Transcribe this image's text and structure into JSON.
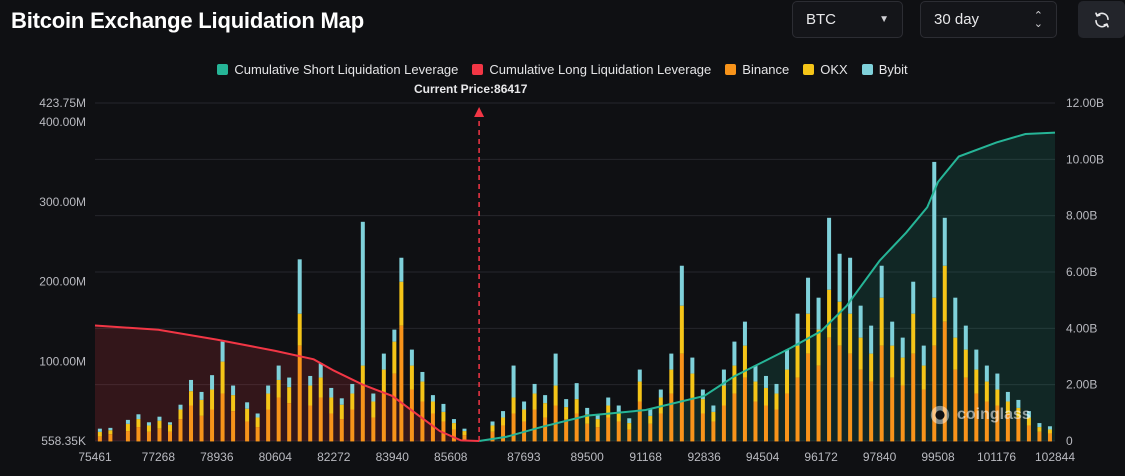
{
  "header": {
    "title": "Bitcoin Exchange Liquidation Map",
    "coin_select": "BTC",
    "range_select": "30 day"
  },
  "icons": {
    "coin_caret": "caret-down-icon",
    "range_updown": "up-down-arrows-icon",
    "refresh": "refresh-icon",
    "watermark": "coinglass-logo"
  },
  "current_price_label": "Current Price:86417",
  "watermark_text": "coinglass",
  "colors": {
    "short": "#26b597",
    "long": "#f23645",
    "binance": "#f7931a",
    "okx": "#f5c518",
    "bybit": "#7fd1da"
  },
  "chart_data": {
    "type": "bar",
    "legend": [
      {
        "name": "Cumulative Short Liquidation Leverage",
        "color": "#26b597"
      },
      {
        "name": "Cumulative Long Liquidation Leverage",
        "color": "#f23645"
      },
      {
        "name": "Binance",
        "color": "#f7931a"
      },
      {
        "name": "OKX",
        "color": "#f5c518"
      },
      {
        "name": "Bybit",
        "color": "#7fd1da"
      }
    ],
    "legend_position": "top-center",
    "current_price": 86417,
    "x_ticks": [
      "75461",
      "77268",
      "78936",
      "80604",
      "82272",
      "83940",
      "85608",
      "87693",
      "89500",
      "91168",
      "92836",
      "94504",
      "96172",
      "97840",
      "99508",
      "101176",
      "102844"
    ],
    "x_range": [
      75461,
      102844
    ],
    "y_left_ticks": [
      "423.75M",
      "400.00M",
      "300.00M",
      "200.00M",
      "100.00M",
      "558.35K"
    ],
    "y_left_range": [
      558350,
      423750000
    ],
    "y_right_ticks": [
      "12.00B",
      "10.00B",
      "8.00B",
      "6.00B",
      "4.00B",
      "2.00B",
      "0"
    ],
    "y_right_range": [
      0,
      12000000000
    ],
    "cumulative_long": [
      [
        75461,
        4100000000.0
      ],
      [
        77268,
        3950000000.0
      ],
      [
        78936,
        3600000000.0
      ],
      [
        80604,
        3200000000.0
      ],
      [
        81700,
        2900000000.0
      ],
      [
        82272,
        2500000000.0
      ],
      [
        83100,
        2000000000.0
      ],
      [
        83940,
        1600000000.0
      ],
      [
        84700,
        900000000.0
      ],
      [
        85300,
        350000000.0
      ],
      [
        85900,
        20000000.0
      ],
      [
        86417,
        0
      ]
    ],
    "cumulative_short": [
      [
        86417,
        0
      ],
      [
        87200,
        150000000.0
      ],
      [
        88200,
        500000000.0
      ],
      [
        89500,
        900000000.0
      ],
      [
        91168,
        1100000000.0
      ],
      [
        92836,
        1600000000.0
      ],
      [
        93700,
        2300000000.0
      ],
      [
        94504,
        2800000000.0
      ],
      [
        95300,
        3300000000.0
      ],
      [
        96172,
        3900000000.0
      ],
      [
        96900,
        4800000000.0
      ],
      [
        97840,
        6400000000.0
      ],
      [
        98600,
        7400000000.0
      ],
      [
        99200,
        8300000000.0
      ],
      [
        99508,
        9200000000.0
      ],
      [
        100100,
        10100000000.0
      ],
      [
        101176,
        10600000000.0
      ],
      [
        102000,
        10900000000.0
      ],
      [
        102844,
        10950000000.0
      ]
    ],
    "bars": [
      [
        75600,
        6000000.0,
        6000000.0,
        4000000.0
      ],
      [
        75900,
        9000000.0,
        5000000.0,
        3000000.0
      ],
      [
        76400,
        13000000.0,
        9000000.0,
        5000000.0
      ],
      [
        76700,
        18000000.0,
        10000000.0,
        6000000.0
      ],
      [
        77000,
        12000000.0,
        8000000.0,
        4000000.0
      ],
      [
        77300,
        16000000.0,
        10000000.0,
        5000000.0
      ],
      [
        77600,
        12000000.0,
        9000000.0,
        3000000.0
      ],
      [
        77900,
        28000000.0,
        12000000.0,
        6000000.0
      ],
      [
        78200,
        45000000.0,
        18000000.0,
        14000000.0
      ],
      [
        78500,
        32000000.0,
        20000000.0,
        10000000.0
      ],
      [
        78800,
        40000000.0,
        25000000.0,
        18000000.0
      ],
      [
        79100,
        60000000.0,
        40000000.0,
        25000000.0
      ],
      [
        79400,
        38000000.0,
        20000000.0,
        12000000.0
      ],
      [
        79800,
        25000000.0,
        16000000.0,
        8000000.0
      ],
      [
        80100,
        18000000.0,
        12000000.0,
        5000000.0
      ],
      [
        80400,
        40000000.0,
        20000000.0,
        10000000.0
      ],
      [
        80700,
        55000000.0,
        22000000.0,
        18000000.0
      ],
      [
        81000,
        48000000.0,
        20000000.0,
        12000000.0
      ],
      [
        81300,
        120000000.0,
        40000000.0,
        68000000.0
      ],
      [
        81600,
        45000000.0,
        25000000.0,
        12000000.0
      ],
      [
        81900,
        55000000.0,
        25000000.0,
        18000000.0
      ],
      [
        82200,
        35000000.0,
        20000000.0,
        12000000.0
      ],
      [
        82500,
        28000000.0,
        18000000.0,
        8000000.0
      ],
      [
        82800,
        40000000.0,
        20000000.0,
        12000000.0
      ],
      [
        83100,
        70000000.0,
        25000000.0,
        180000000.0
      ],
      [
        83400,
        30000000.0,
        20000000.0,
        10000000.0
      ],
      [
        83700,
        60000000.0,
        30000000.0,
        20000000.0
      ],
      [
        84000,
        85000000.0,
        40000000.0,
        15000000.0
      ],
      [
        84200,
        145000000.0,
        55000000.0,
        30000000.0
      ],
      [
        84500,
        65000000.0,
        30000000.0,
        20000000.0
      ],
      [
        84800,
        50000000.0,
        25000000.0,
        12000000.0
      ],
      [
        85100,
        35000000.0,
        15000000.0,
        8000000.0
      ],
      [
        85400,
        25000000.0,
        12000000.0,
        10000000.0
      ],
      [
        85700,
        15000000.0,
        8000000.0,
        5000000.0
      ],
      [
        86000,
        8000000.0,
        5000000.0,
        3000000.0
      ],
      [
        86800,
        12000000.0,
        8000000.0,
        5000000.0
      ],
      [
        87100,
        20000000.0,
        10000000.0,
        8000000.0
      ],
      [
        87400,
        35000000.0,
        20000000.0,
        40000000.0
      ],
      [
        87700,
        25000000.0,
        15000000.0,
        10000000.0
      ],
      [
        88000,
        40000000.0,
        20000000.0,
        12000000.0
      ],
      [
        88300,
        30000000.0,
        18000000.0,
        10000000.0
      ],
      [
        88600,
        45000000.0,
        25000000.0,
        40000000.0
      ],
      [
        88900,
        28000000.0,
        15000000.0,
        10000000.0
      ],
      [
        89200,
        35000000.0,
        18000000.0,
        20000000.0
      ],
      [
        89500,
        22000000.0,
        12000000.0,
        8000000.0
      ],
      [
        89800,
        18000000.0,
        10000000.0,
        6000000.0
      ],
      [
        90100,
        30000000.0,
        15000000.0,
        10000000.0
      ],
      [
        90400,
        25000000.0,
        12000000.0,
        8000000.0
      ],
      [
        90700,
        15000000.0,
        8000000.0,
        6000000.0
      ],
      [
        91000,
        50000000.0,
        25000000.0,
        15000000.0
      ],
      [
        91300,
        22000000.0,
        10000000.0,
        8000000.0
      ],
      [
        91600,
        35000000.0,
        20000000.0,
        10000000.0
      ],
      [
        91900,
        60000000.0,
        30000000.0,
        20000000.0
      ],
      [
        92200,
        110000000.0,
        60000000.0,
        50000000.0
      ],
      [
        92500,
        55000000.0,
        30000000.0,
        20000000.0
      ],
      [
        92800,
        35000000.0,
        18000000.0,
        12000000.0
      ],
      [
        93100,
        25000000.0,
        12000000.0,
        8000000.0
      ],
      [
        93400,
        45000000.0,
        25000000.0,
        20000000.0
      ],
      [
        93700,
        60000000.0,
        35000000.0,
        30000000.0
      ],
      [
        94000,
        80000000.0,
        40000000.0,
        30000000.0
      ],
      [
        94300,
        50000000.0,
        25000000.0,
        20000000.0
      ],
      [
        94600,
        45000000.0,
        22000000.0,
        15000000.0
      ],
      [
        94900,
        40000000.0,
        20000000.0,
        12000000.0
      ],
      [
        95200,
        60000000.0,
        30000000.0,
        25000000.0
      ],
      [
        95500,
        80000000.0,
        40000000.0,
        40000000.0
      ],
      [
        95800,
        110000000.0,
        50000000.0,
        45000000.0
      ],
      [
        96100,
        95000000.0,
        45000000.0,
        40000000.0
      ],
      [
        96400,
        130000000.0,
        60000000.0,
        90000000.0
      ],
      [
        96700,
        120000000.0,
        55000000.0,
        60000000.0
      ],
      [
        97000,
        110000000.0,
        50000000.0,
        70000000.0
      ],
      [
        97300,
        90000000.0,
        40000000.0,
        40000000.0
      ],
      [
        97600,
        75000000.0,
        35000000.0,
        35000000.0
      ],
      [
        97900,
        120000000.0,
        60000000.0,
        40000000.0
      ],
      [
        98200,
        80000000.0,
        40000000.0,
        30000000.0
      ],
      [
        98500,
        70000000.0,
        35000000.0,
        25000000.0
      ],
      [
        98800,
        110000000.0,
        50000000.0,
        40000000.0
      ],
      [
        99100,
        65000000.0,
        30000000.0,
        25000000.0
      ],
      [
        99400,
        120000000.0,
        60000000.0,
        170000000.0
      ],
      [
        99700,
        150000000.0,
        70000000.0,
        60000000.0
      ],
      [
        100000,
        90000000.0,
        40000000.0,
        50000000.0
      ],
      [
        100300,
        80000000.0,
        35000000.0,
        30000000.0
      ],
      [
        100600,
        60000000.0,
        30000000.0,
        25000000.0
      ],
      [
        100900,
        50000000.0,
        25000000.0,
        20000000.0
      ],
      [
        101200,
        45000000.0,
        20000000.0,
        20000000.0
      ],
      [
        101500,
        35000000.0,
        15000000.0,
        12000000.0
      ],
      [
        101800,
        30000000.0,
        12000000.0,
        10000000.0
      ],
      [
        102100,
        20000000.0,
        10000000.0,
        8000000.0
      ],
      [
        102400,
        12000000.0,
        6000000.0,
        5000000.0
      ],
      [
        102700,
        10000000.0,
        5000000.0,
        4000000.0
      ]
    ],
    "bars_fields": [
      "price",
      "binance",
      "okx",
      "bybit"
    ]
  }
}
